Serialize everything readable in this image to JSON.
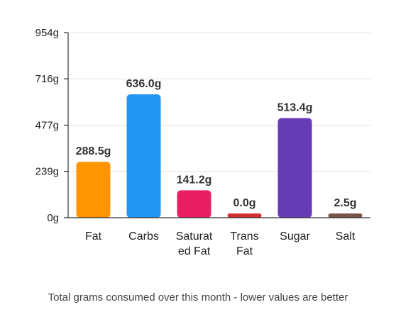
{
  "chart_data": {
    "type": "bar",
    "categories": [
      "Fat",
      "Carbs",
      "Saturated Fat",
      "Trans Fat",
      "Sugar",
      "Salt"
    ],
    "category_label_lines": [
      [
        "Fat"
      ],
      [
        "Carbs"
      ],
      [
        "Saturat",
        "ed Fat"
      ],
      [
        "Trans",
        "Fat"
      ],
      [
        "Sugar"
      ],
      [
        "Salt"
      ]
    ],
    "values": [
      288.5,
      636.0,
      141.2,
      0.0,
      513.4,
      2.5
    ],
    "value_labels": [
      "288.5g",
      "636.0g",
      "141.2g",
      "0.0g",
      "513.4g",
      "2.5g"
    ],
    "colors": [
      "#ff9500",
      "#2196f3",
      "#e91e63",
      "#d32f2f",
      "#673ab7",
      "#795548"
    ],
    "yticks": [
      0,
      239,
      477,
      716,
      954
    ],
    "ytick_labels": [
      "0g",
      "239g",
      "477g",
      "716g",
      "954g"
    ],
    "ylim": [
      0,
      954
    ],
    "grid": true,
    "caption": "Total grams consumed over this month - lower values are better"
  }
}
